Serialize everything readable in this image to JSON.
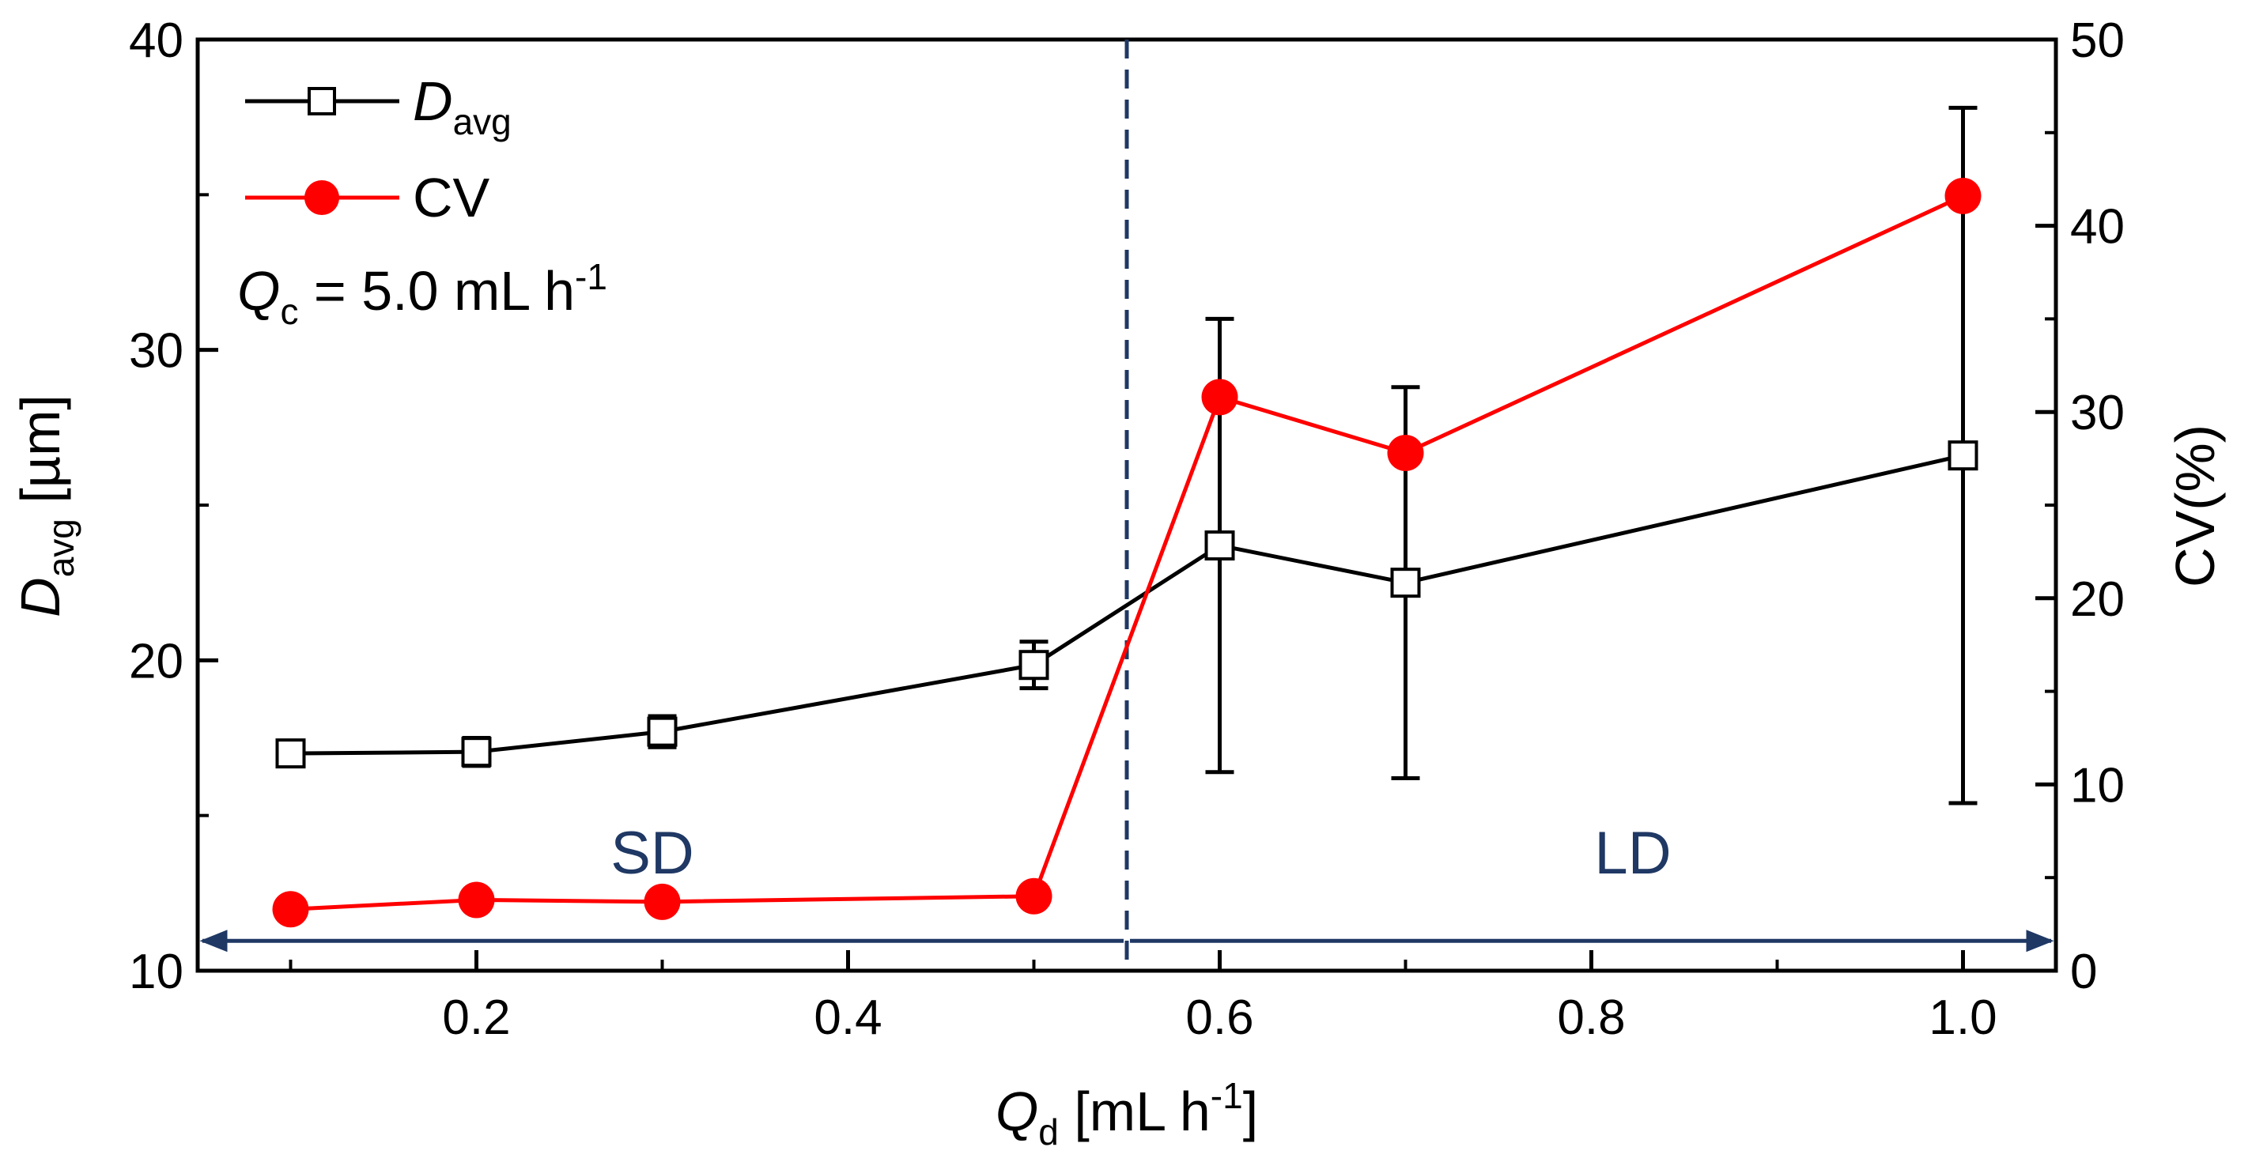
{
  "chart_data": {
    "type": "line",
    "x": [
      0.1,
      0.2,
      0.3,
      0.5,
      0.6,
      0.7,
      1.0
    ],
    "xlim": [
      0.05,
      1.05
    ],
    "xticks": [
      "0.2",
      "0.4",
      "0.6",
      "0.8",
      "1.0"
    ],
    "xlabel": {
      "main": "Q",
      "sub": "d",
      "unit_pre": " [mL h",
      "unit_sup": "-1",
      "unit_post": "]"
    },
    "y_left": {
      "label": {
        "main": "D",
        "sub": "avg",
        "unit": " [µm]"
      },
      "lim": [
        10,
        40
      ],
      "ticks": [
        "10",
        "20",
        "30",
        "40"
      ]
    },
    "y_right": {
      "label": "CV(%)",
      "lim": [
        0,
        50
      ],
      "ticks": [
        "0",
        "10",
        "20",
        "30",
        "40",
        "50"
      ]
    },
    "series": [
      {
        "name": {
          "main": "D",
          "sub": "avg"
        },
        "axis": "left",
        "color": "#000000",
        "marker": "open-square",
        "values": [
          17.0,
          17.05,
          17.7,
          19.85,
          23.7,
          22.5,
          26.6
        ],
        "errors": [
          0.4,
          0.45,
          0.5,
          0.75,
          7.3,
          6.3,
          11.2
        ]
      },
      {
        "name": "CV",
        "axis": "right",
        "color": "#ff0000",
        "marker": "filled-circle",
        "values": [
          3.3,
          3.8,
          3.7,
          4.0,
          30.8,
          27.8,
          41.6
        ]
      }
    ],
    "annotation": {
      "main": "Q",
      "sub": "c",
      "text": " = 5.0 mL h",
      "sup": "-1"
    },
    "regions": {
      "boundary_x": 0.55,
      "color": "#1f3864",
      "left_label": "SD",
      "right_label": "LD"
    },
    "legend_position": "top-left",
    "grid": false
  }
}
